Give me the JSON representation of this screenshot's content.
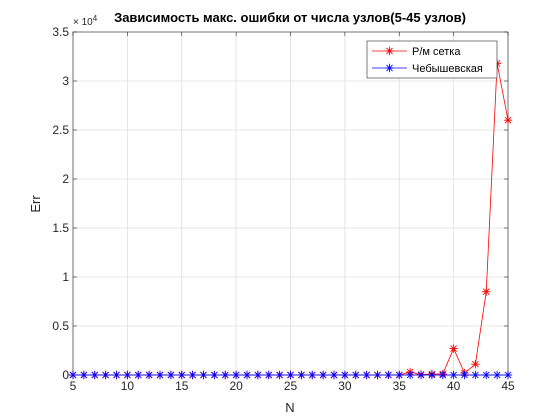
{
  "chart_data": {
    "type": "line",
    "title": "Зависимость макс. ошибки от числа узлов(5-45 узлов)",
    "xlabel": "N",
    "ylabel": "Err",
    "xlim": [
      5,
      45
    ],
    "ylim": [
      0,
      3.5
    ],
    "y_exponent_label": "× 10",
    "y_exponent": "4",
    "xticks": [
      5,
      10,
      15,
      20,
      25,
      30,
      35,
      40,
      45
    ],
    "yticks": [
      0,
      0.5,
      1,
      1.5,
      2,
      2.5,
      3,
      3.5
    ],
    "grid": true,
    "legend_position": "top-right",
    "x": [
      5,
      6,
      7,
      8,
      9,
      10,
      11,
      12,
      13,
      14,
      15,
      16,
      17,
      18,
      19,
      20,
      21,
      22,
      23,
      24,
      25,
      26,
      27,
      28,
      29,
      30,
      31,
      32,
      33,
      34,
      35,
      36,
      37,
      38,
      39,
      40,
      41,
      42,
      43,
      44,
      45
    ],
    "series": [
      {
        "name": "Р/м сетка",
        "color": "#ff0000",
        "marker": "asterisk",
        "values": [
          0,
          0,
          0,
          0,
          0,
          0,
          0,
          0,
          0,
          0,
          0,
          0,
          0,
          0,
          0,
          0,
          0,
          0,
          0,
          0,
          0,
          0,
          0,
          0,
          0,
          0,
          0,
          0,
          0,
          0,
          0,
          0.03,
          0.005,
          0.01,
          0.01,
          0.27,
          0.02,
          0.11,
          0.85,
          3.18,
          2.6
        ]
      },
      {
        "name": "Чебышевская",
        "color": "#0000ff",
        "marker": "asterisk",
        "values": [
          0,
          0,
          0,
          0,
          0,
          0,
          0,
          0,
          0,
          0,
          0,
          0,
          0,
          0,
          0,
          0,
          0,
          0,
          0,
          0,
          0,
          0,
          0,
          0,
          0,
          0,
          0,
          0,
          0,
          0,
          0,
          0,
          0,
          0,
          0,
          0,
          0,
          0,
          0,
          0,
          0
        ]
      }
    ]
  }
}
